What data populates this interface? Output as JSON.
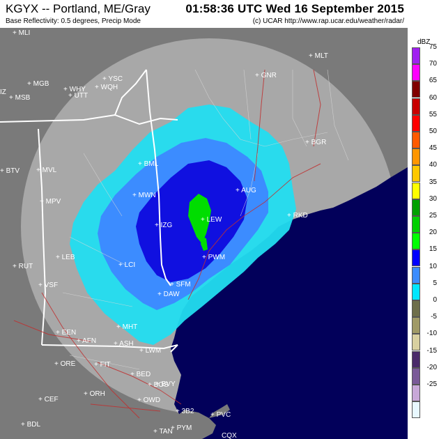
{
  "header": {
    "title": "KGYX -- Portland, ME/Gray",
    "datetime": "01:58:36 UTC Wed 16 September 2015",
    "subtitle": "Base Reflectivity: 0.5 degrees, Precip Mode",
    "credit": "(c) UCAR  http://www.rap.ucar.edu/weather/radar/"
  },
  "legend": {
    "title": "dBZ",
    "levels": [
      {
        "label": "75",
        "color": "#a020f0"
      },
      {
        "label": "70",
        "color": "#ff00ff"
      },
      {
        "label": "65",
        "color": "#800000"
      },
      {
        "label": "60",
        "color": "#c80000"
      },
      {
        "label": "55",
        "color": "#ff0000"
      },
      {
        "label": "50",
        "color": "#ff5a00"
      },
      {
        "label": "45",
        "color": "#ff9600"
      },
      {
        "label": "40",
        "color": "#ffc800"
      },
      {
        "label": "35",
        "color": "#ffff00"
      },
      {
        "label": "30",
        "color": "#00a000"
      },
      {
        "label": "25",
        "color": "#00d000"
      },
      {
        "label": "20",
        "color": "#00ff00"
      },
      {
        "label": "15",
        "color": "#0000ff"
      },
      {
        "label": "10",
        "color": "#3c8cff"
      },
      {
        "label": "5",
        "color": "#00e6ff"
      },
      {
        "label": "0",
        "color": "#6e6e4a"
      },
      {
        "label": "-5",
        "color": "#a09a66"
      },
      {
        "label": "-10",
        "color": "#d8d0a0"
      },
      {
        "label": "-15",
        "color": "#4a2a6a"
      },
      {
        "label": "-20",
        "color": "#7a5a98"
      },
      {
        "label": "-25",
        "color": "#c8a8d8"
      },
      {
        "label": "",
        "color": "#e8f8ff"
      }
    ]
  },
  "colors": {
    "ocean": "#02005a",
    "land_out": "#7a7a7a",
    "land_in": "#a8a8a8",
    "echo_low": "#22ddf0",
    "echo_mid": "#3c8cff",
    "echo_high": "#1010e0",
    "echo_green": "#00dd00",
    "state_border": "#ffffff",
    "roads": "#c03030"
  },
  "stations": [
    {
      "code": "MLI"
    },
    {
      "code": "MLT"
    },
    {
      "code": "YSC"
    },
    {
      "code": "WHY"
    },
    {
      "code": "WQH"
    },
    {
      "code": "UTT"
    },
    {
      "code": "MGB"
    },
    {
      "code": "MSB"
    },
    {
      "code": "IZ"
    },
    {
      "code": "GNR"
    },
    {
      "code": "BGR"
    },
    {
      "code": "BTV"
    },
    {
      "code": "MVL"
    },
    {
      "code": "BML"
    },
    {
      "code": "MWN"
    },
    {
      "code": "AUG"
    },
    {
      "code": "RKD"
    },
    {
      "code": "MPV"
    },
    {
      "code": "IZG"
    },
    {
      "code": "LEW"
    },
    {
      "code": "PWM"
    },
    {
      "code": "LEB"
    },
    {
      "code": "LCI"
    },
    {
      "code": "RUT"
    },
    {
      "code": "VSF"
    },
    {
      "code": "SFM"
    },
    {
      "code": "DAW"
    },
    {
      "code": "EEN"
    },
    {
      "code": "AFN"
    },
    {
      "code": "MHT"
    },
    {
      "code": "ASH"
    },
    {
      "code": "LWM"
    },
    {
      "code": "BVY"
    },
    {
      "code": "ORE"
    },
    {
      "code": "FIT"
    },
    {
      "code": "BED"
    },
    {
      "code": "BOS"
    },
    {
      "code": "ORH"
    },
    {
      "code": "OWD"
    },
    {
      "code": "CEF"
    },
    {
      "code": "BDL"
    },
    {
      "code": "3B2"
    },
    {
      "code": "PVC"
    },
    {
      "code": "TAN"
    },
    {
      "code": "PYM"
    },
    {
      "code": "CQX"
    }
  ]
}
